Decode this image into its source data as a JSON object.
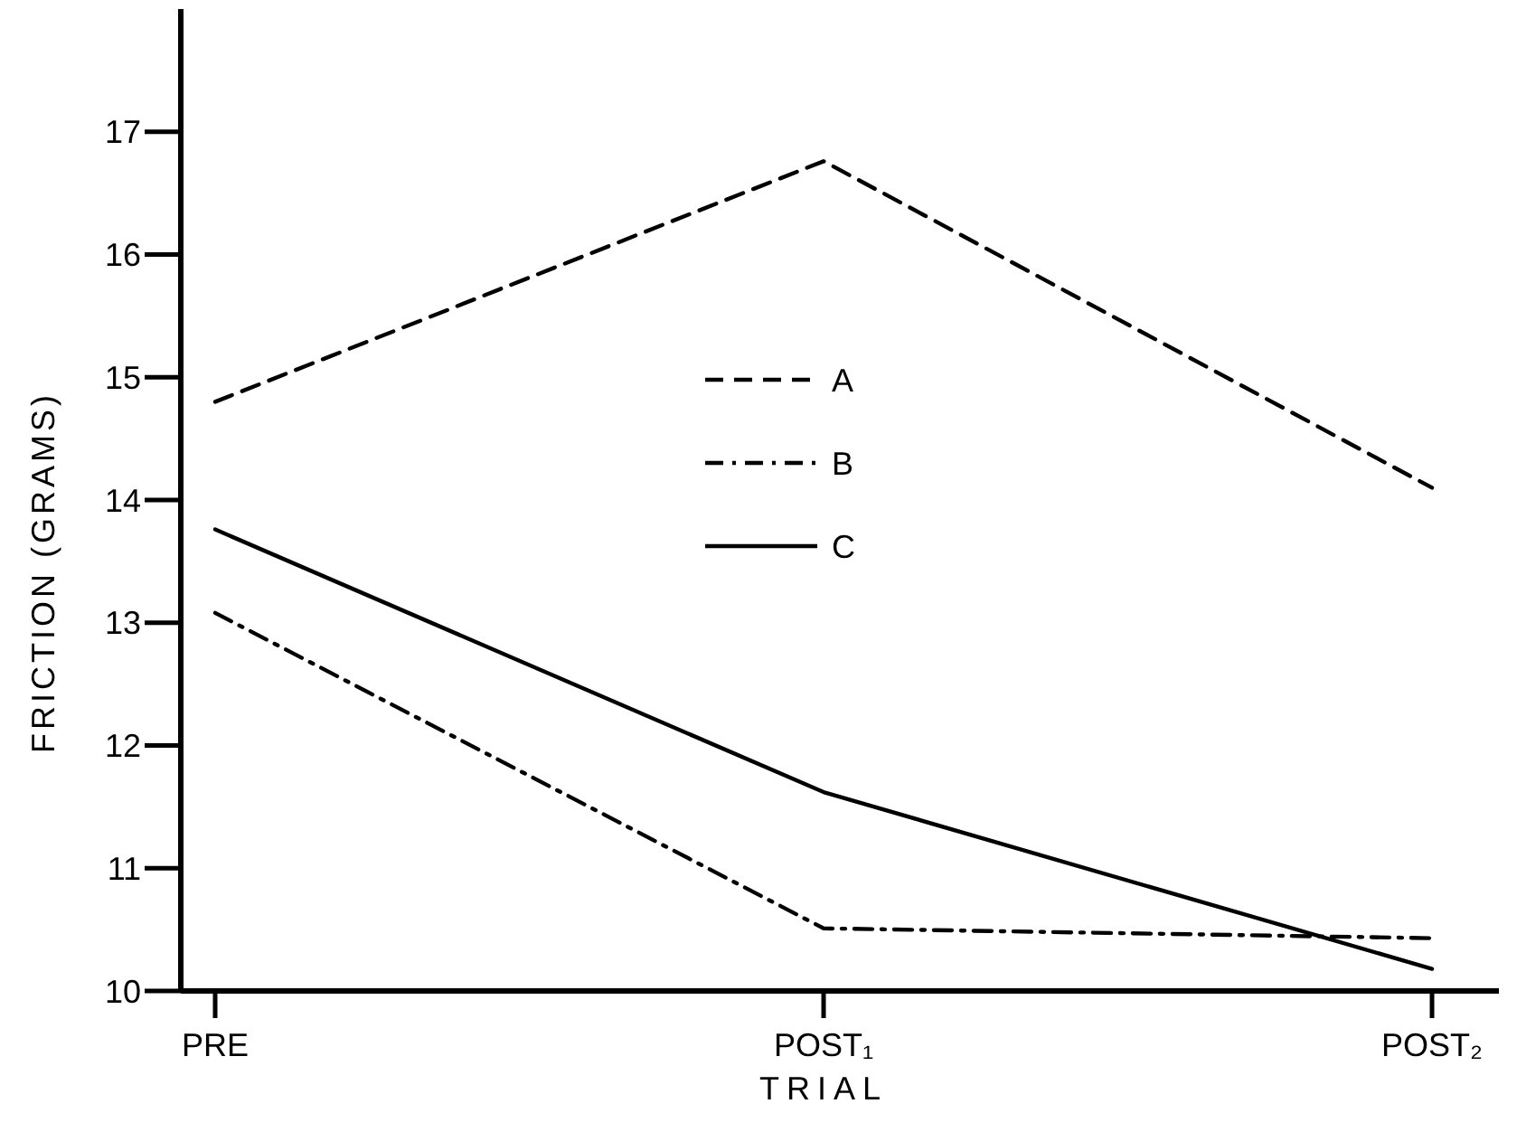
{
  "chart_data": {
    "type": "line",
    "xlabel": "TRIAL",
    "ylabel": "FRICTION (GRAMS)",
    "categories": [
      "PRE",
      "POST₁",
      "POST₂"
    ],
    "ylim": [
      10,
      18
    ],
    "yticks": [
      10,
      11,
      12,
      13,
      14,
      15,
      16,
      17
    ],
    "legend": "top",
    "grid": false,
    "marker": "none",
    "series": [
      {
        "name": "A",
        "color": "#000000",
        "line_style": "dashed",
        "values": [
          14.8,
          16.76,
          14.1
        ]
      },
      {
        "name": "B",
        "color": "#000000",
        "line_style": "dashdot",
        "values": [
          13.08,
          10.51,
          10.43
        ]
      },
      {
        "name": "C",
        "color": "#000000",
        "line_style": "solid",
        "values": [
          13.76,
          11.62,
          10.18
        ]
      }
    ]
  }
}
